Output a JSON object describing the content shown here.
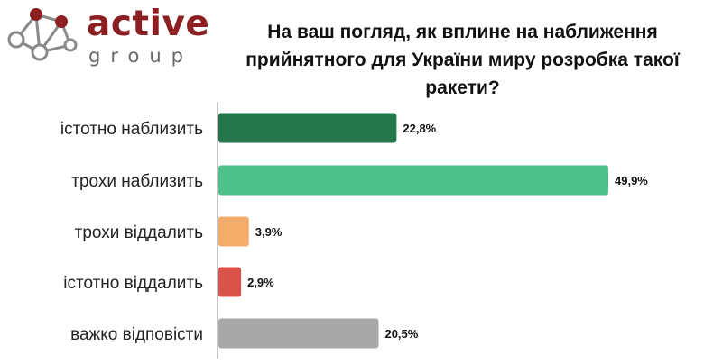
{
  "logo": {
    "brand": "active",
    "sub": "group"
  },
  "chart_data": {
    "type": "bar",
    "orientation": "horizontal",
    "title": "На ваш погляд, як вплине на наближення прийнятного для України миру розробка такої ракети?",
    "categories": [
      "істотно наблизить",
      "трохи наблизить",
      "трохи віддалить",
      "істотно віддалить",
      "важко відповісти"
    ],
    "values": [
      22.8,
      49.9,
      3.9,
      2.9,
      20.5
    ],
    "value_labels": [
      "22,8%",
      "49,9%",
      "3,9%",
      "2,9%",
      "20,5%"
    ],
    "colors": [
      "#24774a",
      "#4fc18a",
      "#f3ac6a",
      "#d9534a",
      "#a8a8a8"
    ],
    "xlim": [
      0,
      49.9
    ],
    "grid": false,
    "legend": "none"
  }
}
